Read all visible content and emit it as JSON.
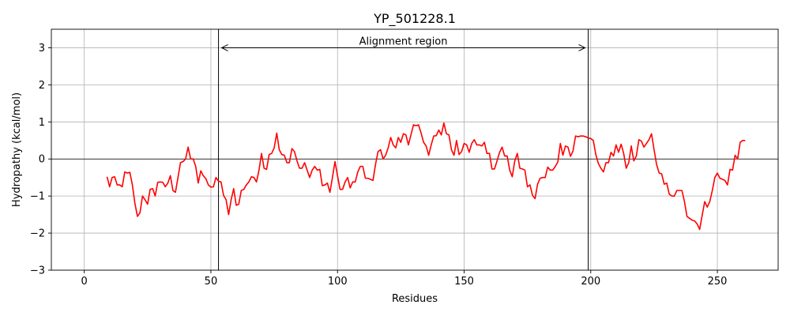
{
  "chart_data": {
    "type": "line",
    "title": "YP_501228.1",
    "xlabel": "Residues",
    "ylabel": "Hydropathy (kcal/mol)",
    "xlim": [
      -13,
      274
    ],
    "ylim": [
      -3,
      3.5
    ],
    "xticks": [
      0,
      50,
      100,
      150,
      200,
      250
    ],
    "yticks": [
      -3,
      -2,
      -1,
      0,
      1,
      2,
      3
    ],
    "grid": true,
    "line_color": "#ff0000",
    "zero_line": 0,
    "alignment_region": {
      "start": 53,
      "end": 199,
      "label": "Alignment region",
      "arrow_y": 3.0
    },
    "series": [
      {
        "x": [
          9,
          10,
          11,
          12,
          13,
          14,
          15,
          16,
          17,
          18,
          19,
          20,
          21,
          22,
          23,
          24,
          25,
          26,
          27,
          28,
          29,
          30,
          31,
          32,
          33,
          34,
          35,
          36,
          37,
          38,
          39,
          40,
          41,
          42,
          43,
          44,
          45,
          46,
          47,
          48,
          49,
          50,
          51,
          52,
          53,
          54,
          55,
          56,
          57,
          58,
          59,
          60,
          61,
          62,
          63,
          64,
          65,
          66,
          67,
          68,
          69,
          70,
          71,
          72,
          73,
          74,
          75,
          76,
          77,
          78,
          79,
          80,
          81,
          82,
          83,
          84,
          85,
          86,
          87,
          88,
          89,
          90,
          91,
          92,
          93,
          94,
          95,
          96,
          97,
          98,
          99,
          100,
          101,
          102,
          103,
          104,
          105,
          106,
          107,
          108,
          109,
          110,
          111,
          112,
          113,
          114,
          115,
          116,
          117,
          118,
          119,
          120,
          121,
          122,
          123,
          124,
          125,
          126,
          127,
          128,
          129,
          130,
          131,
          132,
          133,
          134,
          135,
          136,
          137,
          138,
          139,
          140,
          141,
          142,
          143,
          144,
          145,
          146,
          147,
          148,
          149,
          150,
          151,
          152,
          153,
          154,
          155,
          156,
          157,
          158,
          159,
          160,
          161,
          162,
          163,
          164,
          165,
          166,
          167,
          168,
          169,
          170,
          171,
          172,
          173,
          174,
          175,
          176,
          177,
          178,
          179,
          180,
          181,
          182,
          183,
          184,
          185,
          186,
          187,
          188,
          189,
          190,
          191,
          192,
          193,
          194,
          195,
          196,
          197,
          198,
          199,
          200,
          201,
          202,
          203,
          204,
          205,
          206,
          207,
          208,
          209,
          210,
          211,
          212,
          213,
          214,
          215,
          216,
          217,
          218,
          219,
          220,
          221,
          222,
          223,
          224,
          225,
          226,
          227,
          228,
          229,
          230,
          231,
          232,
          233,
          234,
          235,
          236,
          237,
          238,
          239,
          240,
          241,
          242,
          243,
          244,
          245,
          246,
          247,
          248,
          249,
          250,
          251,
          252,
          253,
          254,
          255,
          256,
          257,
          258,
          259,
          260,
          261
        ],
        "values": [
          -0.48,
          -0.75,
          -0.5,
          -0.48,
          -0.7,
          -0.7,
          -0.75,
          -0.35,
          -0.38,
          -0.36,
          -0.7,
          -1.2,
          -1.55,
          -1.45,
          -1.0,
          -1.1,
          -1.22,
          -0.82,
          -0.8,
          -1.0,
          -0.63,
          -0.62,
          -0.63,
          -0.75,
          -0.65,
          -0.45,
          -0.85,
          -0.9,
          -0.5,
          -0.1,
          -0.07,
          0.0,
          0.32,
          0.0,
          0.0,
          -0.2,
          -0.65,
          -0.32,
          -0.45,
          -0.53,
          -0.7,
          -0.76,
          -0.75,
          -0.5,
          -0.6,
          -0.62,
          -0.98,
          -1.1,
          -1.5,
          -1.1,
          -0.8,
          -1.25,
          -1.22,
          -0.85,
          -0.82,
          -0.7,
          -0.62,
          -0.48,
          -0.5,
          -0.62,
          -0.3,
          0.15,
          -0.25,
          -0.28,
          0.12,
          0.15,
          0.3,
          0.7,
          0.25,
          0.12,
          0.1,
          -0.1,
          -0.1,
          0.28,
          0.2,
          -0.05,
          -0.25,
          -0.25,
          -0.1,
          -0.3,
          -0.5,
          -0.3,
          -0.2,
          -0.3,
          -0.28,
          -0.72,
          -0.7,
          -0.65,
          -0.9,
          -0.5,
          -0.07,
          -0.45,
          -0.82,
          -0.82,
          -0.62,
          -0.5,
          -0.78,
          -0.62,
          -0.62,
          -0.35,
          -0.2,
          -0.2,
          -0.52,
          -0.52,
          -0.55,
          -0.58,
          -0.15,
          0.2,
          0.25,
          0.0,
          0.1,
          0.3,
          0.58,
          0.38,
          0.3,
          0.58,
          0.45,
          0.68,
          0.65,
          0.38,
          0.65,
          0.92,
          0.9,
          0.92,
          0.7,
          0.45,
          0.35,
          0.1,
          0.38,
          0.62,
          0.63,
          0.78,
          0.65,
          0.97,
          0.68,
          0.65,
          0.25,
          0.1,
          0.5,
          0.12,
          0.2,
          0.42,
          0.38,
          0.18,
          0.42,
          0.52,
          0.38,
          0.38,
          0.35,
          0.45,
          0.15,
          0.15,
          -0.27,
          -0.27,
          -0.05,
          0.18,
          0.32,
          0.08,
          0.08,
          -0.3,
          -0.48,
          -0.05,
          0.15,
          -0.25,
          -0.27,
          -0.3,
          -0.75,
          -0.7,
          -0.98,
          -1.07,
          -0.68,
          -0.52,
          -0.5,
          -0.5,
          -0.22,
          -0.3,
          -0.3,
          -0.2,
          -0.08,
          0.42,
          0.1,
          0.35,
          0.32,
          0.07,
          0.22,
          0.62,
          0.6,
          0.62,
          0.62,
          0.6,
          0.57,
          0.55,
          0.5,
          0.12,
          -0.12,
          -0.25,
          -0.35,
          -0.1,
          -0.1,
          0.18,
          0.08,
          0.38,
          0.18,
          0.4,
          0.15,
          -0.25,
          -0.1,
          0.35,
          -0.05,
          0.08,
          0.52,
          0.48,
          0.32,
          0.42,
          0.52,
          0.68,
          0.25,
          -0.15,
          -0.38,
          -0.4,
          -0.68,
          -0.65,
          -0.95,
          -1.0,
          -1.0,
          -0.85,
          -0.85,
          -0.85,
          -1.15,
          -1.55,
          -1.6,
          -1.65,
          -1.67,
          -1.75,
          -1.9,
          -1.52,
          -1.15,
          -1.3,
          -1.15,
          -0.85,
          -0.5,
          -0.38,
          -0.52,
          -0.55,
          -0.58,
          -0.7,
          -0.28,
          -0.3,
          0.1,
          0.0,
          0.45,
          0.5,
          0.5
        ]
      }
    ]
  }
}
